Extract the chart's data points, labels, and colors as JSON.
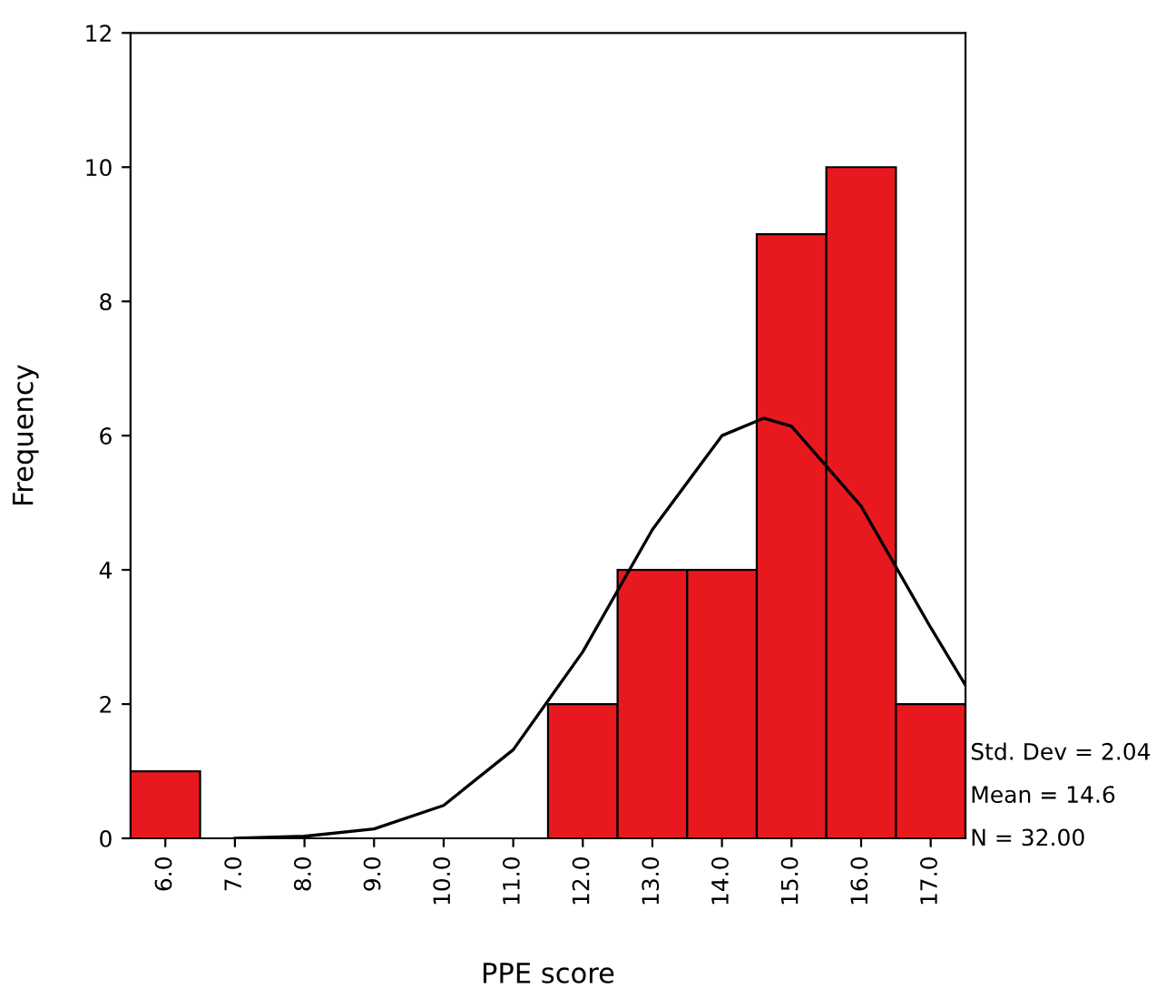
{
  "chart_data": {
    "type": "histogram",
    "bins": [
      5.5,
      6.5,
      7.5,
      8.5,
      9.5,
      10.5,
      11.5,
      12.5,
      13.5,
      14.5,
      15.5,
      16.5,
      17.5
    ],
    "values": [
      1,
      0,
      0,
      0,
      0,
      0,
      2,
      4,
      4,
      9,
      10,
      2
    ],
    "color": "#e8191e",
    "series": [
      {
        "type": "line",
        "color": "#000000",
        "x": [
          7,
          8,
          9,
          10,
          11,
          12,
          13,
          14,
          14.6,
          15,
          16,
          17,
          17.5
        ],
        "values": [
          0,
          0.03,
          0.14,
          0.49,
          1.32,
          2.78,
          4.6,
          6.0,
          6.26,
          6.14,
          4.95,
          3.14,
          2.28
        ]
      }
    ],
    "xlabel": "PPE score",
    "ylabel": "Frequency",
    "xlim": [
      5.5,
      17.5
    ],
    "ylim": [
      0,
      12
    ],
    "xticks": [
      {
        "value": 6,
        "label": "6.0"
      },
      {
        "value": 7,
        "label": "7.0"
      },
      {
        "value": 8,
        "label": "8.0"
      },
      {
        "value": 9,
        "label": "9.0"
      },
      {
        "value": 10,
        "label": "10.0"
      },
      {
        "value": 11,
        "label": "11.0"
      },
      {
        "value": 12,
        "label": "12.0"
      },
      {
        "value": 13,
        "label": "13.0"
      },
      {
        "value": 14,
        "label": "14.0"
      },
      {
        "value": 15,
        "label": "15.0"
      },
      {
        "value": 16,
        "label": "16.0"
      },
      {
        "value": 17,
        "label": "17.0"
      }
    ],
    "yticks": [
      0,
      2,
      4,
      6,
      8,
      10,
      12
    ],
    "annotations": [
      "Std. Dev = 2.04",
      "Mean = 14.6",
      "N = 32.00"
    ],
    "grid": false,
    "legend": false,
    "marker": "none",
    "line_style": "solid"
  }
}
